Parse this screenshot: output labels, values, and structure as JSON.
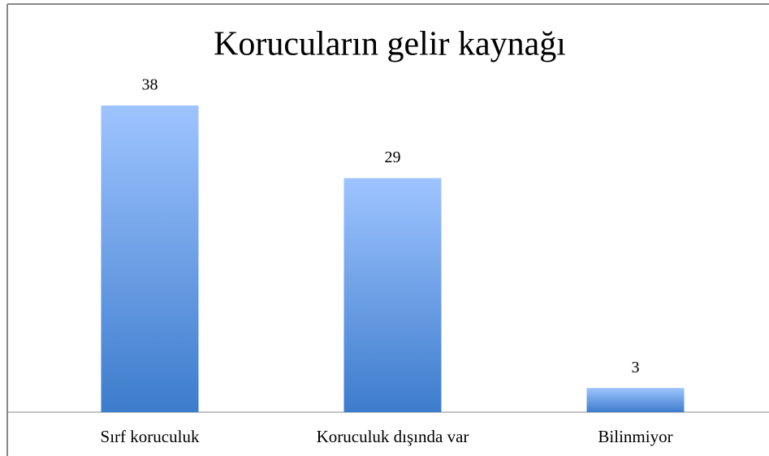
{
  "chart_data": {
    "type": "bar",
    "title": "Korucuların gelir kaynağı",
    "categories": [
      "Sırf koruculuk",
      "Koruculuk dışında var",
      "Bilinmiyor"
    ],
    "values": [
      38,
      29,
      3
    ]
  }
}
